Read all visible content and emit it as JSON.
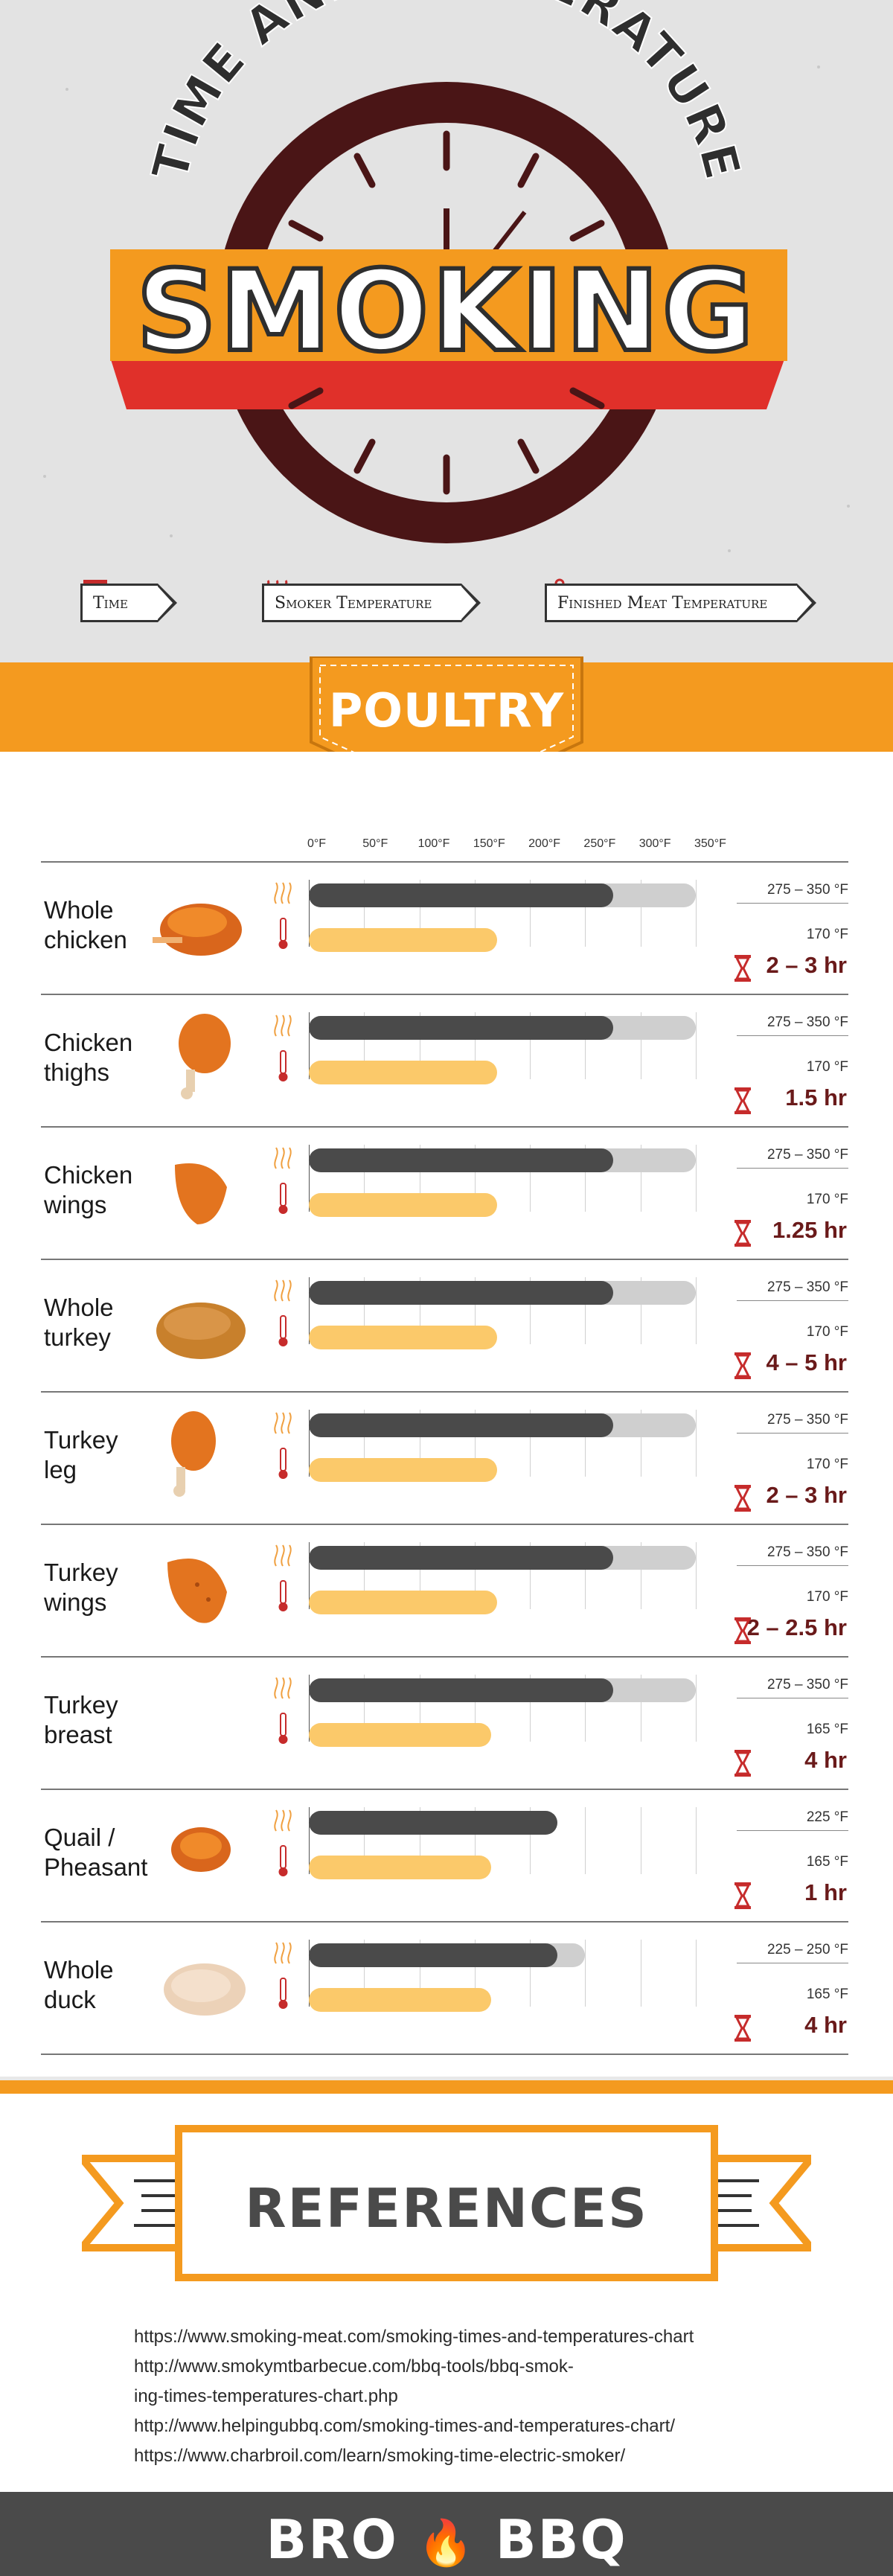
{
  "header": {
    "arc_title": "TIME AND TEMPERATURE",
    "main_title": "SMOKING",
    "colors": {
      "orange": "#f49a1f",
      "dark_red": "#4a1516",
      "red": "#e0302a"
    }
  },
  "legend": [
    {
      "label": "Time",
      "icon": "hourglass-icon"
    },
    {
      "label": "Smoker Temperature",
      "icon": "smoke-icon"
    },
    {
      "label": "Finished Meat Temperature",
      "icon": "thermometer-icon"
    }
  ],
  "section_title": "POULTRY",
  "scale": [
    "0°F",
    "50°F",
    "100°F",
    "150°F",
    "200°F",
    "250°F",
    "300°F",
    "350°F"
  ],
  "rows": [
    {
      "name_1": "Whole",
      "name_2": "chicken",
      "smoker": "275 – 350 °F",
      "meat": "170 °F",
      "time": "2 – 3 hr",
      "smoker_min": 275,
      "smoker_max": 350,
      "meat_temp": 170
    },
    {
      "name_1": "Chicken",
      "name_2": "thighs",
      "smoker": "275 – 350 °F",
      "meat": "170 °F",
      "time": "1.5 hr",
      "smoker_min": 275,
      "smoker_max": 350,
      "meat_temp": 170
    },
    {
      "name_1": "Chicken",
      "name_2": "wings",
      "smoker": "275 – 350 °F",
      "meat": "170 °F",
      "time": "1.25 hr",
      "smoker_min": 275,
      "smoker_max": 350,
      "meat_temp": 170
    },
    {
      "name_1": "Whole",
      "name_2": "turkey",
      "smoker": "275 – 350 °F",
      "meat": "170 °F",
      "time": "4 – 5 hr",
      "smoker_min": 275,
      "smoker_max": 350,
      "meat_temp": 170
    },
    {
      "name_1": "Turkey",
      "name_2": "leg",
      "smoker": "275 – 350 °F",
      "meat": "170 °F",
      "time": "2 – 3 hr",
      "smoker_min": 275,
      "smoker_max": 350,
      "meat_temp": 170
    },
    {
      "name_1": "Turkey",
      "name_2": "wings",
      "smoker": "275 – 350 °F",
      "meat": "170 °F",
      "time": "2 – 2.5 hr",
      "smoker_min": 275,
      "smoker_max": 350,
      "meat_temp": 170
    },
    {
      "name_1": "Turkey",
      "name_2": "breast",
      "smoker": "275 – 350 °F",
      "meat": "165 °F",
      "time": "4 hr",
      "smoker_min": 275,
      "smoker_max": 350,
      "meat_temp": 165
    },
    {
      "name_1": "Quail /",
      "name_2": "Pheasant",
      "smoker": "225 °F",
      "meat": "165 °F",
      "time": "1 hr",
      "smoker_min": 225,
      "smoker_max": 225,
      "meat_temp": 165
    },
    {
      "name_1": "Whole",
      "name_2": "duck",
      "smoker": "225 – 250 °F",
      "meat": "165 °F",
      "time": "4 hr",
      "smoker_min": 225,
      "smoker_max": 250,
      "meat_temp": 165
    }
  ],
  "references": {
    "title": "REFERENCES",
    "lines": [
      "https://www.smoking-meat.com/smoking-times-and-temperatures-chart",
      "http://www.smokymtbarbecue.com/bbq-tools/bbq-smok-",
      "ing-times-temperatures-chart.php",
      "http://www.helpingubbq.com/smoking-times-and-temperatures-chart/",
      "https://www.charbroil.com/learn/smoking-time-electric-smoker/"
    ]
  },
  "footer": {
    "logo_left": "BRO",
    "logo_right": "BBQ"
  }
}
